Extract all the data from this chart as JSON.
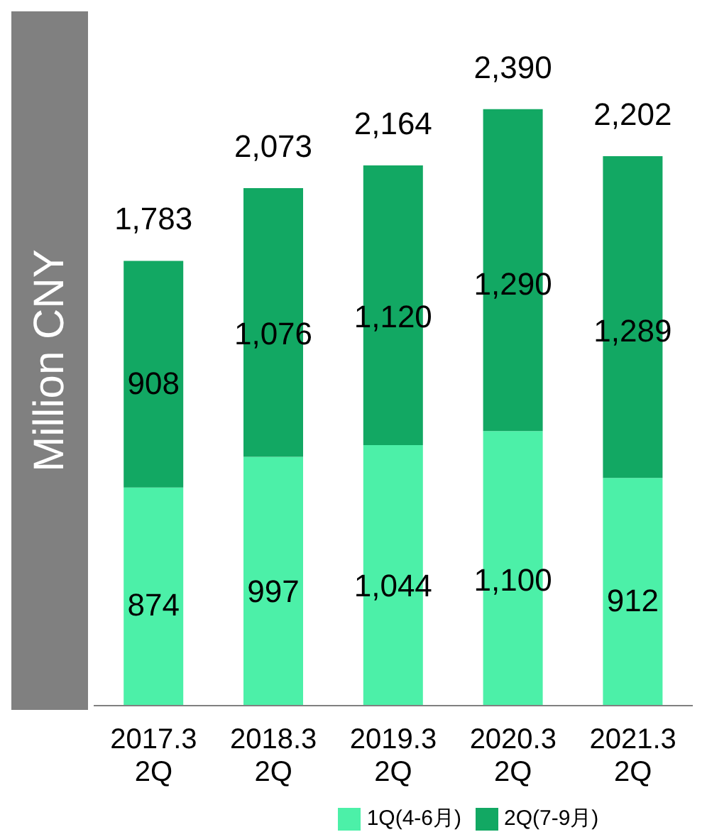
{
  "chart_data": {
    "type": "bar",
    "stacked": true,
    "ylabel": "Million CNY",
    "categories": [
      "2017.3\n2Q",
      "2018.3\n2Q",
      "2019.3\n2Q",
      "2020.3\n2Q",
      "2021.3\n2Q"
    ],
    "series": [
      {
        "name": "1Q(4-6月)",
        "color": "#4cf0a8",
        "values": [
          874,
          997,
          1044,
          1100,
          912
        ],
        "value_labels": [
          "874",
          "997",
          "1,044",
          "1,100",
          "912"
        ]
      },
      {
        "name": "2Q(7-9月)",
        "color": "#12a863",
        "values": [
          908,
          1076,
          1120,
          1290,
          1289
        ],
        "value_labels": [
          "908",
          "1,076",
          "1,120",
          "1,290",
          "1,289"
        ]
      }
    ],
    "totals": [
      "1,783",
      "2,073",
      "2,164",
      "2,390",
      "2,202"
    ],
    "legend": "bottom",
    "grid": false
  }
}
